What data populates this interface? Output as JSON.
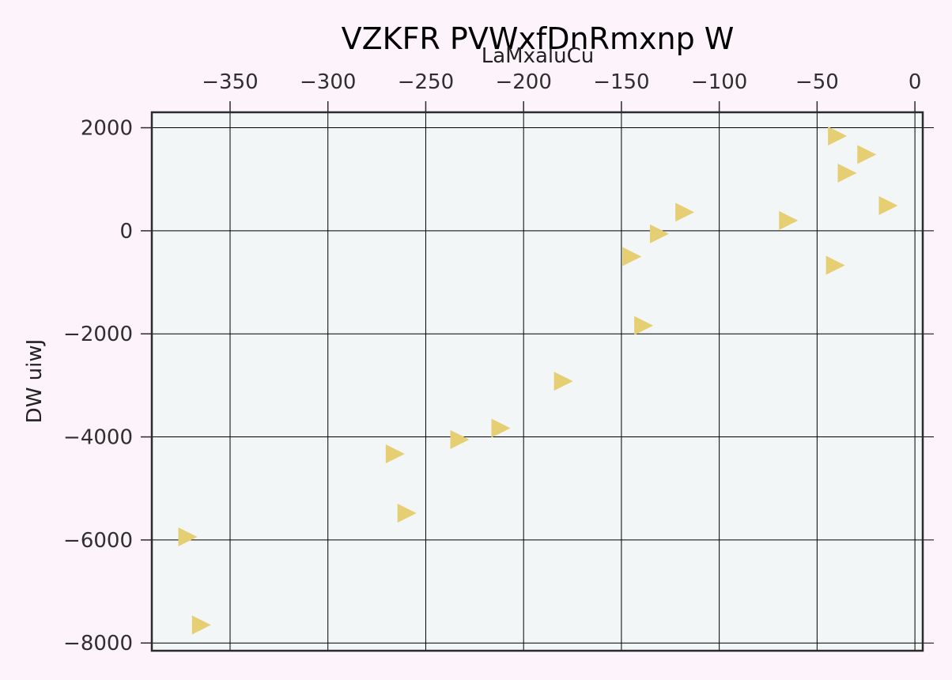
{
  "chart_data": {
    "type": "scatter",
    "title": "VZKFR PVWxfDnRmxnp W",
    "xlabel": "LaMxaluCu",
    "ylabel": "DW uiwJ",
    "x_axis_position": "top",
    "xlim": [
      -390,
      4
    ],
    "ylim": [
      -8150,
      2300
    ],
    "x_ticks": [
      -350,
      -300,
      -250,
      -200,
      -150,
      -100,
      -50,
      0
    ],
    "y_ticks": [
      2000,
      0,
      -2000,
      -4000,
      -6000,
      -8000
    ],
    "grid": true,
    "marker": "triangle-right",
    "colors": {
      "marker": "#e6cf73",
      "plot_background": "#f2f6f7",
      "page_background": "#fdf3fa",
      "grid": "#000000",
      "frame": "#2b2b2b"
    },
    "points": [
      {
        "x": -372,
        "y": -5940
      },
      {
        "x": -365,
        "y": -7650
      },
      {
        "x": -266,
        "y": -4330
      },
      {
        "x": -260,
        "y": -5480
      },
      {
        "x": -233,
        "y": -4050
      },
      {
        "x": -212,
        "y": -3830
      },
      {
        "x": -180,
        "y": -2920
      },
      {
        "x": -145,
        "y": -500
      },
      {
        "x": -139,
        "y": -1840
      },
      {
        "x": -131,
        "y": -60
      },
      {
        "x": -118,
        "y": 360
      },
      {
        "x": -65,
        "y": 200
      },
      {
        "x": -41,
        "y": -670
      },
      {
        "x": -40,
        "y": 1840
      },
      {
        "x": -35,
        "y": 1120
      },
      {
        "x": -25,
        "y": 1480
      },
      {
        "x": -14,
        "y": 490
      }
    ]
  }
}
